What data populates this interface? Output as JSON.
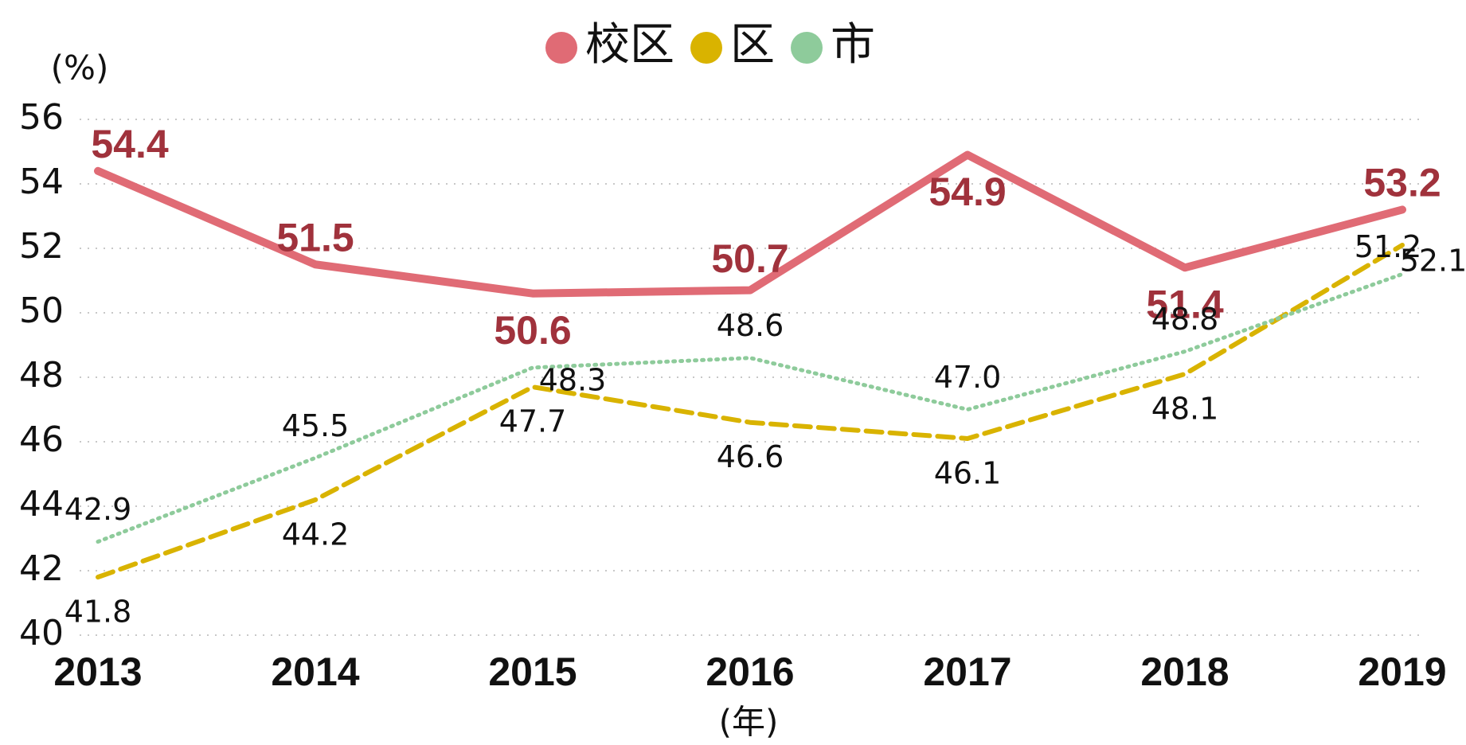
{
  "chart_data": {
    "type": "line",
    "y_unit": "(%)",
    "x_label": "(年)",
    "categories": [
      "2013",
      "2014",
      "2015",
      "2016",
      "2017",
      "2018",
      "2019"
    ],
    "ylim": [
      40,
      56
    ],
    "yticks": [
      40,
      42,
      44,
      46,
      48,
      50,
      52,
      54,
      56
    ],
    "grid": true,
    "series": [
      {
        "name": "校区",
        "color": "#e06b75",
        "style": "solid",
        "values": [
          54.4,
          51.5,
          50.6,
          50.7,
          54.9,
          51.4,
          53.2
        ],
        "value_labels": [
          "54.4",
          "51.5",
          "50.6",
          "50.7",
          "54.9",
          "51.4",
          "53.2"
        ]
      },
      {
        "name": "区",
        "color": "#d9b300",
        "style": "dashed",
        "values": [
          41.8,
          44.2,
          47.7,
          46.6,
          46.1,
          48.1,
          52.1
        ],
        "value_labels": [
          "41.8",
          "44.2",
          "47.7",
          "46.6",
          "46.1",
          "48.1",
          "52.1"
        ]
      },
      {
        "name": "市",
        "color": "#8ecb9b",
        "style": "dotted",
        "values": [
          42.9,
          45.5,
          48.3,
          48.6,
          47.0,
          48.8,
          51.2
        ],
        "value_labels": [
          "42.9",
          "45.5",
          "48.3",
          "48.6",
          "47.0",
          "48.8",
          "51.2"
        ]
      }
    ]
  }
}
